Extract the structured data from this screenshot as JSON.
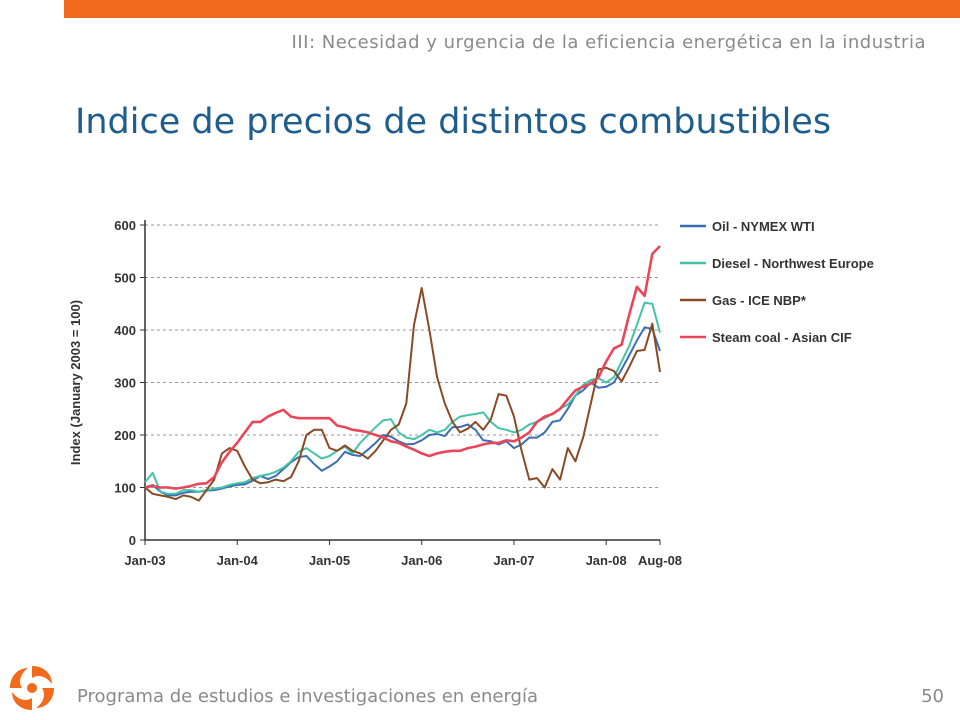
{
  "header": {
    "section": "III: Necesidad y urgencia de la eficiencia energética en la industria",
    "title": "Indice de precios de distintos combustibles"
  },
  "footer": {
    "program": "Programa de estudios e investigaciones en energía",
    "page": "50"
  },
  "logo": {
    "icon": "swirl-logo-icon",
    "color": "#f26a1b"
  },
  "colors": {
    "accent": "#f26a1b",
    "title": "#1f5d8c",
    "muted": "#8a8a8a"
  },
  "chart_data": {
    "type": "line",
    "ylabel": "Index (January 2003 = 100)",
    "ylim": [
      0,
      600
    ],
    "yticks": [
      0,
      100,
      200,
      300,
      400,
      500,
      600
    ],
    "xlim": [
      0,
      67
    ],
    "xticks": [
      {
        "x": 0,
        "label": "Jan-03"
      },
      {
        "x": 12,
        "label": "Jan-04"
      },
      {
        "x": 24,
        "label": "Jan-05"
      },
      {
        "x": 36,
        "label": "Jan-06"
      },
      {
        "x": 48,
        "label": "Jan-07"
      },
      {
        "x": 60,
        "label": "Jan-08"
      },
      {
        "x": 67,
        "label": "Aug-08"
      }
    ],
    "grid": true,
    "legend_position": "right",
    "series": [
      {
        "name": "Oil - NYMEX WTI",
        "color": "#3a6fb5",
        "points": [
          [
            0,
            100
          ],
          [
            1,
            105
          ],
          [
            2,
            92
          ],
          [
            3,
            85
          ],
          [
            4,
            85
          ],
          [
            5,
            90
          ],
          [
            6,
            92
          ],
          [
            7,
            92
          ],
          [
            8,
            94
          ],
          [
            9,
            95
          ],
          [
            10,
            98
          ],
          [
            11,
            102
          ],
          [
            12,
            105
          ],
          [
            13,
            106
          ],
          [
            14,
            113
          ],
          [
            15,
            122
          ],
          [
            16,
            116
          ],
          [
            17,
            122
          ],
          [
            18,
            135
          ],
          [
            19,
            148
          ],
          [
            20,
            158
          ],
          [
            21,
            160
          ],
          [
            22,
            145
          ],
          [
            23,
            132
          ],
          [
            24,
            140
          ],
          [
            25,
            150
          ],
          [
            26,
            168
          ],
          [
            27,
            162
          ],
          [
            28,
            160
          ],
          [
            29,
            172
          ],
          [
            30,
            185
          ],
          [
            31,
            200
          ],
          [
            32,
            197
          ],
          [
            33,
            188
          ],
          [
            34,
            182
          ],
          [
            35,
            183
          ],
          [
            36,
            190
          ],
          [
            37,
            200
          ],
          [
            38,
            202
          ],
          [
            39,
            198
          ],
          [
            40,
            215
          ],
          [
            41,
            215
          ],
          [
            42,
            220
          ],
          [
            43,
            210
          ],
          [
            44,
            190
          ],
          [
            45,
            188
          ],
          [
            46,
            182
          ],
          [
            47,
            188
          ],
          [
            48,
            175
          ],
          [
            49,
            182
          ],
          [
            50,
            195
          ],
          [
            51,
            195
          ],
          [
            52,
            205
          ],
          [
            53,
            225
          ],
          [
            54,
            228
          ],
          [
            55,
            250
          ],
          [
            56,
            275
          ],
          [
            57,
            285
          ],
          [
            58,
            300
          ],
          [
            59,
            290
          ],
          [
            60,
            292
          ],
          [
            61,
            300
          ],
          [
            62,
            325
          ],
          [
            63,
            352
          ],
          [
            64,
            380
          ],
          [
            65,
            405
          ],
          [
            66,
            402
          ],
          [
            67,
            360
          ]
        ]
      },
      {
        "name": "Diesel - Northwest Europe",
        "color": "#45c3a8",
        "points": [
          [
            0,
            110
          ],
          [
            1,
            128
          ],
          [
            2,
            92
          ],
          [
            3,
            88
          ],
          [
            4,
            88
          ],
          [
            5,
            95
          ],
          [
            6,
            95
          ],
          [
            7,
            92
          ],
          [
            8,
            95
          ],
          [
            9,
            98
          ],
          [
            10,
            100
          ],
          [
            11,
            105
          ],
          [
            12,
            108
          ],
          [
            13,
            110
          ],
          [
            14,
            118
          ],
          [
            15,
            122
          ],
          [
            16,
            125
          ],
          [
            17,
            130
          ],
          [
            18,
            138
          ],
          [
            19,
            150
          ],
          [
            20,
            168
          ],
          [
            21,
            175
          ],
          [
            22,
            165
          ],
          [
            23,
            155
          ],
          [
            24,
            160
          ],
          [
            25,
            170
          ],
          [
            26,
            178
          ],
          [
            27,
            165
          ],
          [
            28,
            185
          ],
          [
            29,
            200
          ],
          [
            30,
            215
          ],
          [
            31,
            228
          ],
          [
            32,
            230
          ],
          [
            33,
            205
          ],
          [
            34,
            195
          ],
          [
            35,
            192
          ],
          [
            36,
            200
          ],
          [
            37,
            210
          ],
          [
            38,
            205
          ],
          [
            39,
            210
          ],
          [
            40,
            225
          ],
          [
            41,
            235
          ],
          [
            42,
            238
          ],
          [
            43,
            240
          ],
          [
            44,
            243
          ],
          [
            45,
            225
          ],
          [
            46,
            213
          ],
          [
            47,
            210
          ],
          [
            48,
            205
          ],
          [
            49,
            210
          ],
          [
            50,
            220
          ],
          [
            51,
            225
          ],
          [
            52,
            232
          ],
          [
            53,
            240
          ],
          [
            54,
            250
          ],
          [
            55,
            258
          ],
          [
            56,
            275
          ],
          [
            57,
            295
          ],
          [
            58,
            305
          ],
          [
            59,
            308
          ],
          [
            60,
            300
          ],
          [
            61,
            310
          ],
          [
            62,
            340
          ],
          [
            63,
            370
          ],
          [
            64,
            410
          ],
          [
            65,
            452
          ],
          [
            66,
            450
          ],
          [
            67,
            395
          ]
        ]
      },
      {
        "name": "Gas - ICE NBP*",
        "color": "#8b4a25",
        "points": [
          [
            0,
            100
          ],
          [
            1,
            88
          ],
          [
            2,
            85
          ],
          [
            3,
            82
          ],
          [
            4,
            78
          ],
          [
            5,
            85
          ],
          [
            6,
            82
          ],
          [
            7,
            75
          ],
          [
            8,
            95
          ],
          [
            9,
            115
          ],
          [
            10,
            165
          ],
          [
            11,
            175
          ],
          [
            12,
            170
          ],
          [
            13,
            140
          ],
          [
            14,
            115
          ],
          [
            15,
            108
          ],
          [
            16,
            110
          ],
          [
            17,
            115
          ],
          [
            18,
            112
          ],
          [
            19,
            120
          ],
          [
            20,
            150
          ],
          [
            21,
            200
          ],
          [
            22,
            210
          ],
          [
            23,
            210
          ],
          [
            24,
            175
          ],
          [
            25,
            170
          ],
          [
            26,
            180
          ],
          [
            27,
            170
          ],
          [
            28,
            165
          ],
          [
            29,
            155
          ],
          [
            30,
            170
          ],
          [
            31,
            190
          ],
          [
            32,
            210
          ],
          [
            33,
            220
          ],
          [
            34,
            260
          ],
          [
            35,
            410
          ],
          [
            36,
            480
          ],
          [
            37,
            400
          ],
          [
            38,
            310
          ],
          [
            39,
            260
          ],
          [
            40,
            225
          ],
          [
            41,
            205
          ],
          [
            42,
            212
          ],
          [
            43,
            225
          ],
          [
            44,
            210
          ],
          [
            45,
            230
          ],
          [
            46,
            278
          ],
          [
            47,
            275
          ],
          [
            48,
            235
          ],
          [
            49,
            170
          ],
          [
            50,
            115
          ],
          [
            51,
            118
          ],
          [
            52,
            100
          ],
          [
            53,
            135
          ],
          [
            54,
            115
          ],
          [
            55,
            175
          ],
          [
            56,
            150
          ],
          [
            57,
            195
          ],
          [
            58,
            260
          ],
          [
            59,
            325
          ],
          [
            60,
            328
          ],
          [
            61,
            322
          ],
          [
            62,
            302
          ],
          [
            63,
            330
          ],
          [
            64,
            360
          ],
          [
            65,
            362
          ],
          [
            66,
            412
          ],
          [
            67,
            320
          ]
        ]
      },
      {
        "name": "Steam coal - Asian CIF",
        "color": "#e8475a",
        "points": [
          [
            0,
            100
          ],
          [
            1,
            103
          ],
          [
            2,
            100
          ],
          [
            3,
            100
          ],
          [
            4,
            98
          ],
          [
            5,
            100
          ],
          [
            6,
            103
          ],
          [
            7,
            107
          ],
          [
            8,
            108
          ],
          [
            9,
            120
          ],
          [
            10,
            148
          ],
          [
            11,
            168
          ],
          [
            12,
            185
          ],
          [
            13,
            205
          ],
          [
            14,
            225
          ],
          [
            15,
            225
          ],
          [
            16,
            235
          ],
          [
            17,
            242
          ],
          [
            18,
            248
          ],
          [
            19,
            235
          ],
          [
            20,
            232
          ],
          [
            21,
            232
          ],
          [
            22,
            232
          ],
          [
            23,
            232
          ],
          [
            24,
            232
          ],
          [
            25,
            218
          ],
          [
            26,
            215
          ],
          [
            27,
            210
          ],
          [
            28,
            208
          ],
          [
            29,
            205
          ],
          [
            30,
            200
          ],
          [
            31,
            195
          ],
          [
            32,
            188
          ],
          [
            33,
            185
          ],
          [
            34,
            178
          ],
          [
            35,
            172
          ],
          [
            36,
            165
          ],
          [
            37,
            160
          ],
          [
            38,
            165
          ],
          [
            39,
            168
          ],
          [
            40,
            170
          ],
          [
            41,
            170
          ],
          [
            42,
            175
          ],
          [
            43,
            178
          ],
          [
            44,
            182
          ],
          [
            45,
            185
          ],
          [
            46,
            185
          ],
          [
            47,
            190
          ],
          [
            48,
            188
          ],
          [
            49,
            195
          ],
          [
            50,
            205
          ],
          [
            51,
            225
          ],
          [
            52,
            235
          ],
          [
            53,
            240
          ],
          [
            54,
            250
          ],
          [
            55,
            268
          ],
          [
            56,
            285
          ],
          [
            57,
            292
          ],
          [
            58,
            298
          ],
          [
            59,
            310
          ],
          [
            60,
            340
          ],
          [
            61,
            365
          ],
          [
            62,
            372
          ],
          [
            63,
            430
          ],
          [
            64,
            482
          ],
          [
            65,
            465
          ],
          [
            66,
            545
          ],
          [
            67,
            560
          ]
        ]
      }
    ]
  }
}
